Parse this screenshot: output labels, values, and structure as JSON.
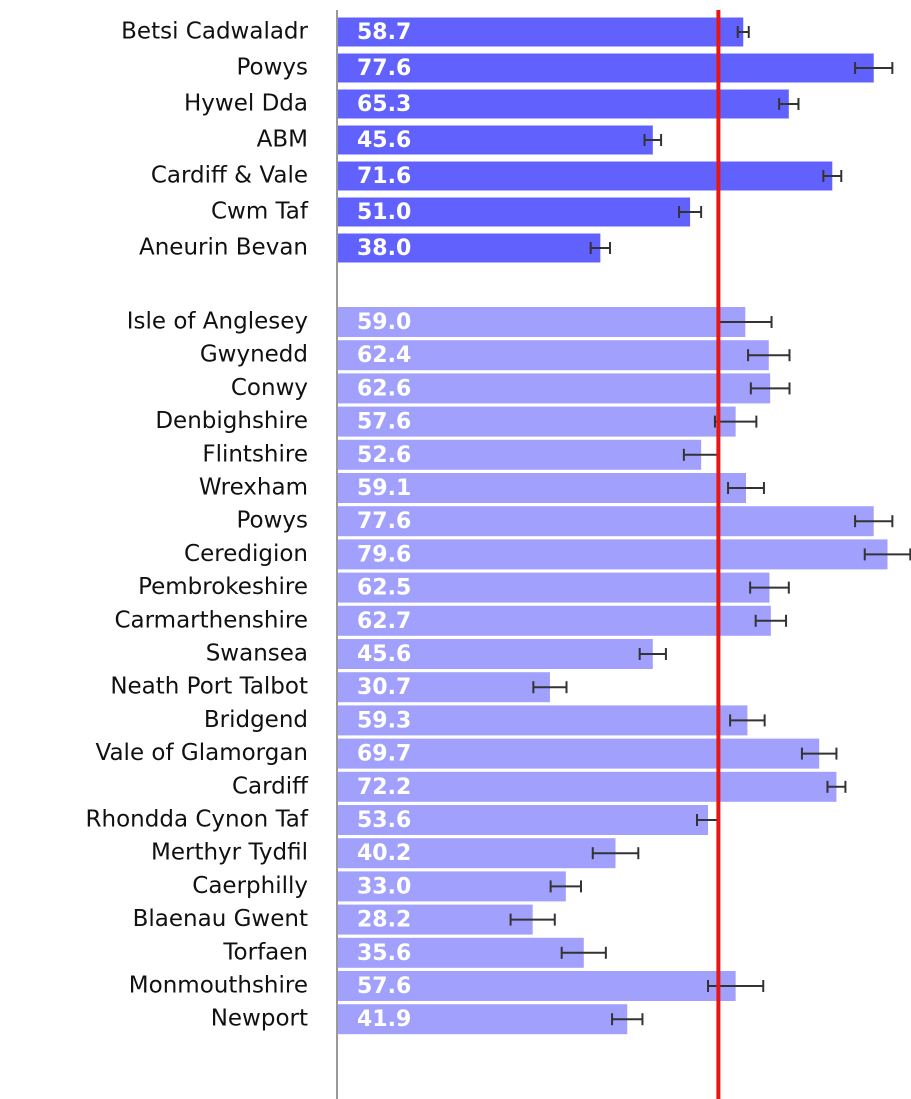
{
  "chart_data": {
    "type": "bar",
    "orientation": "horizontal",
    "xlim": [
      0,
      83
    ],
    "reference_line": 55.1,
    "reference_color": "#e81515",
    "groups": [
      {
        "color": "#6161fd",
        "categories": [
          "Betsi Cadwaladr",
          "Powys",
          "Hywel Dda",
          "ABM",
          "Cardiff & Vale",
          "Cwm Taf",
          "Aneurin Bevan"
        ],
        "values": [
          58.7,
          77.6,
          65.3,
          45.6,
          71.6,
          51.0,
          38.0
        ],
        "value_labels": [
          "58.7",
          "77.6",
          "65.3",
          "45.6",
          "71.6",
          "51.0",
          "38.0"
        ],
        "errors": [
          0.8,
          2.7,
          1.4,
          1.2,
          1.3,
          1.6,
          1.4
        ]
      },
      {
        "color": "#a1a1fd",
        "categories": [
          "Isle of Anglesey",
          "Gwynedd",
          "Conwy",
          "Denbighshire",
          "Flintshire",
          "Wrexham",
          "Powys",
          "Ceredigion",
          "Pembrokeshire",
          "Carmarthenshire",
          "Swansea",
          "Neath Port Talbot",
          "Bridgend",
          "Vale of Glamorgan",
          "Cardiff",
          "Rhondda Cynon Taf",
          "Merthyr Tydfil",
          "Caerphilly",
          "Blaenau Gwent",
          "Torfaen",
          "Monmouthshire",
          "Newport"
        ],
        "values": [
          59.0,
          62.4,
          62.6,
          57.6,
          52.6,
          59.1,
          77.6,
          79.6,
          62.5,
          62.7,
          45.6,
          30.7,
          59.3,
          69.7,
          72.2,
          53.6,
          40.2,
          33.0,
          28.2,
          35.6,
          57.6,
          41.9
        ],
        "value_labels": [
          "59.0",
          "62.4",
          "62.6",
          "57.6",
          "52.6",
          "59.1",
          "77.6",
          "79.6",
          "62.5",
          "62.7",
          "45.6",
          "30.7",
          "59.3",
          "69.7",
          "72.2",
          "53.6",
          "40.2",
          "33.0",
          "28.2",
          "35.6",
          "57.6",
          "41.9"
        ],
        "errors": [
          3.8,
          3.0,
          2.8,
          3.0,
          2.5,
          2.6,
          2.7,
          3.3,
          2.8,
          2.2,
          1.9,
          2.4,
          2.5,
          2.5,
          1.3,
          1.6,
          3.3,
          2.2,
          3.2,
          3.2,
          4.0,
          2.2
        ]
      }
    ]
  }
}
